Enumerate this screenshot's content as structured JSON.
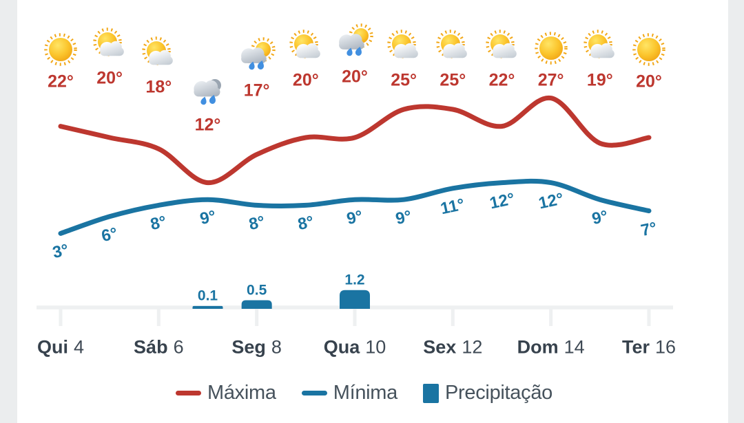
{
  "chart_data": {
    "type": "line",
    "title": "",
    "categories": [
      "Qui 4",
      "Sáb 6",
      "Seg 8",
      "Qua 10",
      "Sex 12",
      "Dom 14",
      "Ter 16"
    ],
    "x_tick_labels": [
      {
        "day": "Qui",
        "num": "4"
      },
      {
        "day": "Sáb",
        "num": "6"
      },
      {
        "day": "Seg",
        "num": "8"
      },
      {
        "day": "Qua",
        "num": "10"
      },
      {
        "day": "Sex",
        "num": "12"
      },
      {
        "day": "Dom",
        "num": "14"
      },
      {
        "day": "Ter",
        "num": "16"
      }
    ],
    "days": [
      {
        "icon": "sunny",
        "max": 22,
        "max_label": "22°",
        "min": 3,
        "min_label": "3°",
        "precip": null,
        "precip_label": ""
      },
      {
        "icon": "sun-cloud",
        "max": 20,
        "max_label": "20°",
        "min": 6,
        "min_label": "6°",
        "precip": null,
        "precip_label": ""
      },
      {
        "icon": "sun-cloud",
        "max": 18,
        "max_label": "18°",
        "min": 8,
        "min_label": "8°",
        "precip": null,
        "precip_label": ""
      },
      {
        "icon": "rain",
        "max": 12,
        "max_label": "12°",
        "min": 9,
        "min_label": "9°",
        "precip": 0.1,
        "precip_label": "0.1"
      },
      {
        "icon": "rain-sun",
        "max": 17,
        "max_label": "17°",
        "min": 8,
        "min_label": "8°",
        "precip": 0.5,
        "precip_label": "0.5"
      },
      {
        "icon": "sun-cloud",
        "max": 20,
        "max_label": "20°",
        "min": 8,
        "min_label": "8°",
        "precip": null,
        "precip_label": ""
      },
      {
        "icon": "rain-sun",
        "max": 20,
        "max_label": "20°",
        "min": 9,
        "min_label": "9°",
        "precip": 1.2,
        "precip_label": "1.2"
      },
      {
        "icon": "sun-cloud",
        "max": 25,
        "max_label": "25°",
        "min": 9,
        "min_label": "9°",
        "precip": null,
        "precip_label": ""
      },
      {
        "icon": "sun-cloud",
        "max": 25,
        "max_label": "25°",
        "min": 11,
        "min_label": "11°",
        "precip": null,
        "precip_label": ""
      },
      {
        "icon": "sun-cloud",
        "max": 22,
        "max_label": "22°",
        "min": 12,
        "min_label": "12°",
        "precip": null,
        "precip_label": ""
      },
      {
        "icon": "sunny",
        "max": 27,
        "max_label": "27°",
        "min": 12,
        "min_label": "12°",
        "precip": null,
        "precip_label": ""
      },
      {
        "icon": "sun-cloud",
        "max": 19,
        "max_label": "19°",
        "min": 9,
        "min_label": "9°",
        "precip": null,
        "precip_label": ""
      },
      {
        "icon": "sunny",
        "max": 20,
        "max_label": "20°",
        "min": 7,
        "min_label": "7°",
        "precip": null,
        "precip_label": ""
      }
    ],
    "series": [
      {
        "name": "Máxima",
        "type": "line",
        "color": "#bd372f",
        "values": [
          22,
          20,
          18,
          12,
          17,
          20,
          20,
          25,
          25,
          22,
          27,
          19,
          20
        ]
      },
      {
        "name": "Mínima",
        "type": "line",
        "color": "#1a74a2",
        "values": [
          3,
          6,
          8,
          9,
          8,
          8,
          9,
          9,
          11,
          12,
          12,
          9,
          7
        ]
      },
      {
        "name": "Precipitação",
        "type": "bar",
        "color": "#1a74a2",
        "values": [
          null,
          null,
          null,
          0.1,
          0.5,
          null,
          1.2,
          null,
          null,
          null,
          null,
          null,
          null
        ]
      }
    ],
    "legend": {
      "position": "bottom",
      "items": [
        {
          "label": "Máxima",
          "marker": "line",
          "color": "#bd372f"
        },
        {
          "label": "Mínima",
          "marker": "line",
          "color": "#1a74a2"
        },
        {
          "label": "Precipitação",
          "marker": "square",
          "color": "#1a74a2"
        }
      ]
    },
    "axes": {
      "x_visible": true,
      "y_visible": false,
      "grid": false,
      "axis_color": "#eef0f1"
    }
  },
  "colors": {
    "max_line": "#bd372f",
    "min_line": "#1a74a2",
    "precip_bar": "#1a74a2",
    "axis": "#eef0f1",
    "day_text": "#37424d",
    "legend_text": "#46525c",
    "gutter_bg": "#ebedee",
    "panel_bg": "#ffffff"
  }
}
